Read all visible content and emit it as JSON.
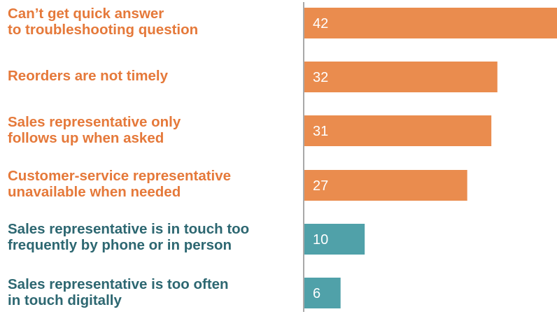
{
  "chart_data": {
    "type": "bar",
    "orientation": "horizontal",
    "title": "",
    "xlabel": "",
    "ylabel": "",
    "categories": [
      "Can’t get quick answer\nto troubleshooting question",
      "Reorders are not timely",
      "Sales representative only\nfollows up when asked",
      "Customer-service representative\nunavailable when needed",
      "Sales representative is in touch too\nfrequently by phone or in person",
      "Sales representative is too often\nin touch digitally"
    ],
    "values": [
      42,
      32,
      31,
      27,
      10,
      6
    ],
    "xlim": [
      0,
      42
    ],
    "grid": false,
    "legend": "none",
    "colors": [
      "#EA8C4E",
      "#EA8C4E",
      "#EA8C4E",
      "#EA8C4E",
      "#50A1A9",
      "#50A1A9"
    ],
    "label_colors": [
      "#E5793A",
      "#E5793A",
      "#E5793A",
      "#E5793A",
      "#2D6771",
      "#2D6771"
    ],
    "axis_color": "#8C8C8C"
  }
}
